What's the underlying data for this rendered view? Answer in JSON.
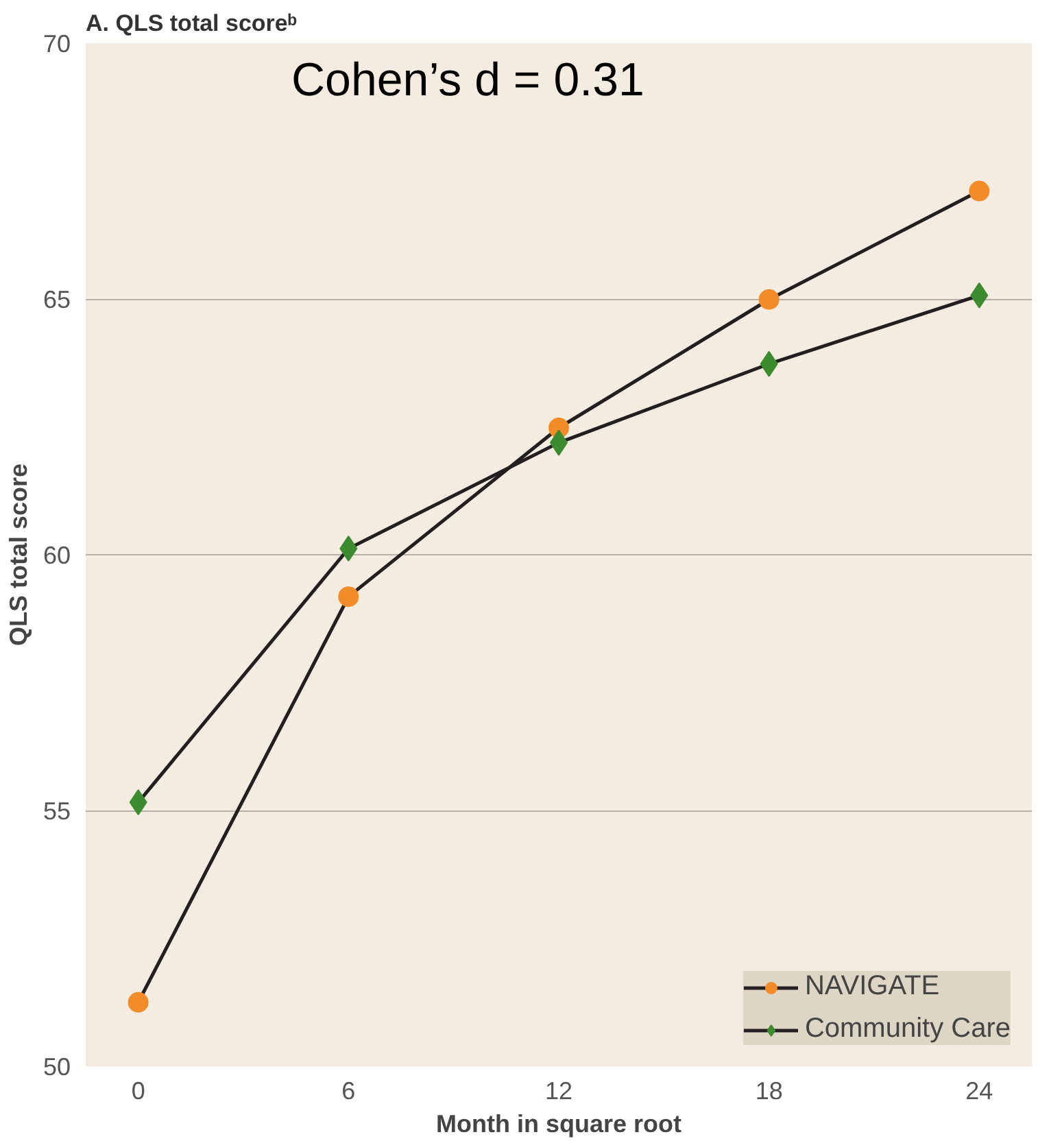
{
  "chart_data": {
    "type": "line",
    "title": "A. QLS total scoreᵇ",
    "xlabel": "Month in square root",
    "ylabel": "QLS total score",
    "categories": [
      "0",
      "6",
      "12",
      "18",
      "24"
    ],
    "ylim": [
      50,
      70
    ],
    "yticks": [
      50,
      55,
      60,
      65,
      70
    ],
    "grid": "y",
    "legend": "bottom right",
    "annotations": [
      "Cohen’s d = 0.31"
    ],
    "series": [
      {
        "name": "NAVIGATE",
        "color": "#f28c28",
        "marker": "circle",
        "values": [
          51.25,
          59.18,
          62.48,
          64.99,
          67.11
        ]
      },
      {
        "name": "Community Care",
        "color": "#3d8b2f",
        "marker": "diamond",
        "values": [
          55.16,
          60.12,
          62.19,
          63.73,
          65.07
        ]
      }
    ]
  }
}
